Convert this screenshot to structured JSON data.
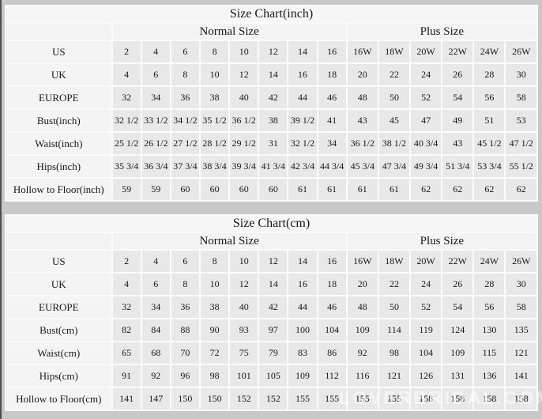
{
  "watermark": "LOVERBRIDAL.COM",
  "chart_data": [
    {
      "type": "table",
      "title": "Size Chart(inch)",
      "group_headers": [
        "Normal Size",
        "Plus Size"
      ],
      "rows": [
        {
          "label": "US",
          "normal": [
            "2",
            "4",
            "6",
            "8",
            "10",
            "12",
            "14",
            "16"
          ],
          "plus": [
            "16W",
            "18W",
            "20W",
            "22W",
            "24W",
            "26W"
          ]
        },
        {
          "label": "UK",
          "normal": [
            "4",
            "6",
            "8",
            "10",
            "12",
            "14",
            "16",
            "18"
          ],
          "plus": [
            "20",
            "22",
            "24",
            "26",
            "28",
            "30"
          ]
        },
        {
          "label": "EUROPE",
          "normal": [
            "32",
            "34",
            "36",
            "38",
            "40",
            "42",
            "44",
            "46"
          ],
          "plus": [
            "48",
            "50",
            "52",
            "54",
            "56",
            "58"
          ]
        },
        {
          "label": "Bust(inch)",
          "normal": [
            "32 1/2",
            "33 1/2",
            "34 1/2",
            "35 1/2",
            "36 1/2",
            "38",
            "39 1/2",
            "41"
          ],
          "plus": [
            "43",
            "45",
            "47",
            "49",
            "51",
            "53"
          ]
        },
        {
          "label": "Waist(inch)",
          "normal": [
            "25 1/2",
            "26 1/2",
            "27 1/2",
            "28 1/2",
            "29 1/2",
            "31",
            "32 1/2",
            "34"
          ],
          "plus": [
            "36 1/2",
            "38 1/2",
            "40 3/4",
            "43",
            "45 1/2",
            "47 1/2"
          ]
        },
        {
          "label": "Hips(inch)",
          "normal": [
            "35 3/4",
            "36 3/4",
            "37 3/4",
            "38 3/4",
            "39 3/4",
            "41 3/4",
            "42 3/4",
            "44 3/4"
          ],
          "plus": [
            "45 3/4",
            "47 3/4",
            "49 3/4",
            "51 3/4",
            "53 3/4",
            "55 1/2"
          ]
        },
        {
          "label": "Hollow to Floor(inch)",
          "normal": [
            "59",
            "59",
            "60",
            "60",
            "60",
            "60",
            "61",
            "61"
          ],
          "plus": [
            "61",
            "61",
            "62",
            "62",
            "62",
            "62"
          ]
        }
      ]
    },
    {
      "type": "table",
      "title": "Size Chart(cm)",
      "group_headers": [
        "Normal Size",
        "Plus Size"
      ],
      "rows": [
        {
          "label": "US",
          "normal": [
            "2",
            "4",
            "6",
            "8",
            "10",
            "12",
            "14",
            "16"
          ],
          "plus": [
            "16W",
            "18W",
            "20W",
            "22W",
            "24W",
            "26W"
          ]
        },
        {
          "label": "UK",
          "normal": [
            "4",
            "6",
            "8",
            "10",
            "12",
            "14",
            "16",
            "18"
          ],
          "plus": [
            "20",
            "22",
            "24",
            "26",
            "28",
            "30"
          ]
        },
        {
          "label": "EUROPE",
          "normal": [
            "32",
            "34",
            "36",
            "38",
            "40",
            "42",
            "44",
            "46"
          ],
          "plus": [
            "48",
            "50",
            "52",
            "54",
            "56",
            "58"
          ]
        },
        {
          "label": "Bust(cm)",
          "normal": [
            "82",
            "84",
            "88",
            "90",
            "93",
            "97",
            "100",
            "104"
          ],
          "plus": [
            "109",
            "114",
            "119",
            "124",
            "130",
            "135"
          ]
        },
        {
          "label": "Waist(cm)",
          "normal": [
            "65",
            "68",
            "70",
            "72",
            "75",
            "79",
            "83",
            "86"
          ],
          "plus": [
            "92",
            "98",
            "104",
            "109",
            "115",
            "121"
          ]
        },
        {
          "label": "Hips(cm)",
          "normal": [
            "91",
            "92",
            "96",
            "98",
            "101",
            "105",
            "109",
            "112"
          ],
          "plus": [
            "116",
            "121",
            "126",
            "131",
            "136",
            "141"
          ]
        },
        {
          "label": "Hollow to Floor(cm)",
          "normal": [
            "141",
            "147",
            "150",
            "150",
            "152",
            "152",
            "155",
            "155"
          ],
          "plus": [
            "155",
            "155",
            "158",
            "158",
            "158",
            "158"
          ]
        }
      ]
    }
  ]
}
